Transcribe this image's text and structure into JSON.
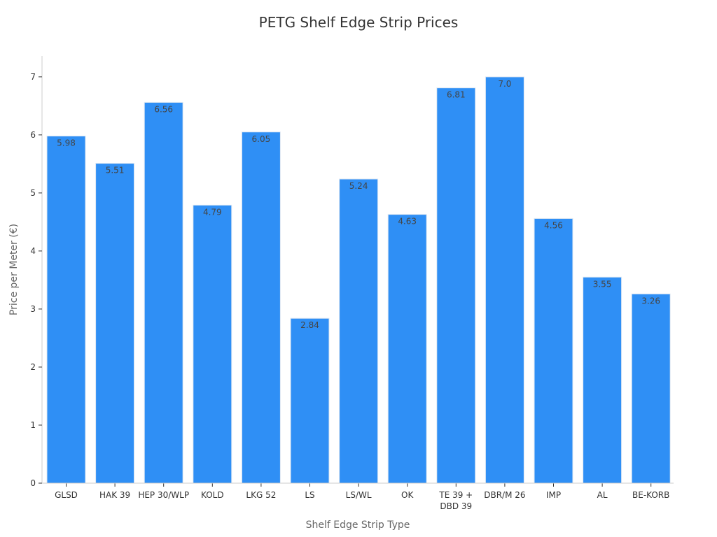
{
  "chart_data": {
    "type": "bar",
    "title": "PETG Shelf Edge Strip Prices",
    "xlabel": "Shelf Edge Strip Type",
    "ylabel": "Price per Meter (€)",
    "categories": [
      [
        "GLSD"
      ],
      [
        "HAK 39"
      ],
      [
        "HEP 30/WLP"
      ],
      [
        "KOLD"
      ],
      [
        "LKG 52"
      ],
      [
        "LS"
      ],
      [
        "LS/WL"
      ],
      [
        "OK"
      ],
      [
        "TE 39 +",
        "DBD 39"
      ],
      [
        "DBR/M 26"
      ],
      [
        "IMP"
      ],
      [
        "AL"
      ],
      [
        "BE-KORB"
      ]
    ],
    "values": [
      5.98,
      5.51,
      6.56,
      4.79,
      6.05,
      2.84,
      5.24,
      4.63,
      6.81,
      7.0,
      4.56,
      3.55,
      3.26
    ],
    "value_labels": [
      "5.98",
      "5.51",
      "6.56",
      "4.79",
      "6.05",
      "2.84",
      "5.24",
      "4.63",
      "6.81",
      "7.0",
      "4.56",
      "3.55",
      "3.26"
    ],
    "ylim": [
      0,
      7.36
    ],
    "yticks": [
      "0",
      "1",
      "2",
      "3",
      "4",
      "5",
      "6",
      "7"
    ],
    "grid": false,
    "legend": "none",
    "bar_color": "#2f8ff5"
  }
}
